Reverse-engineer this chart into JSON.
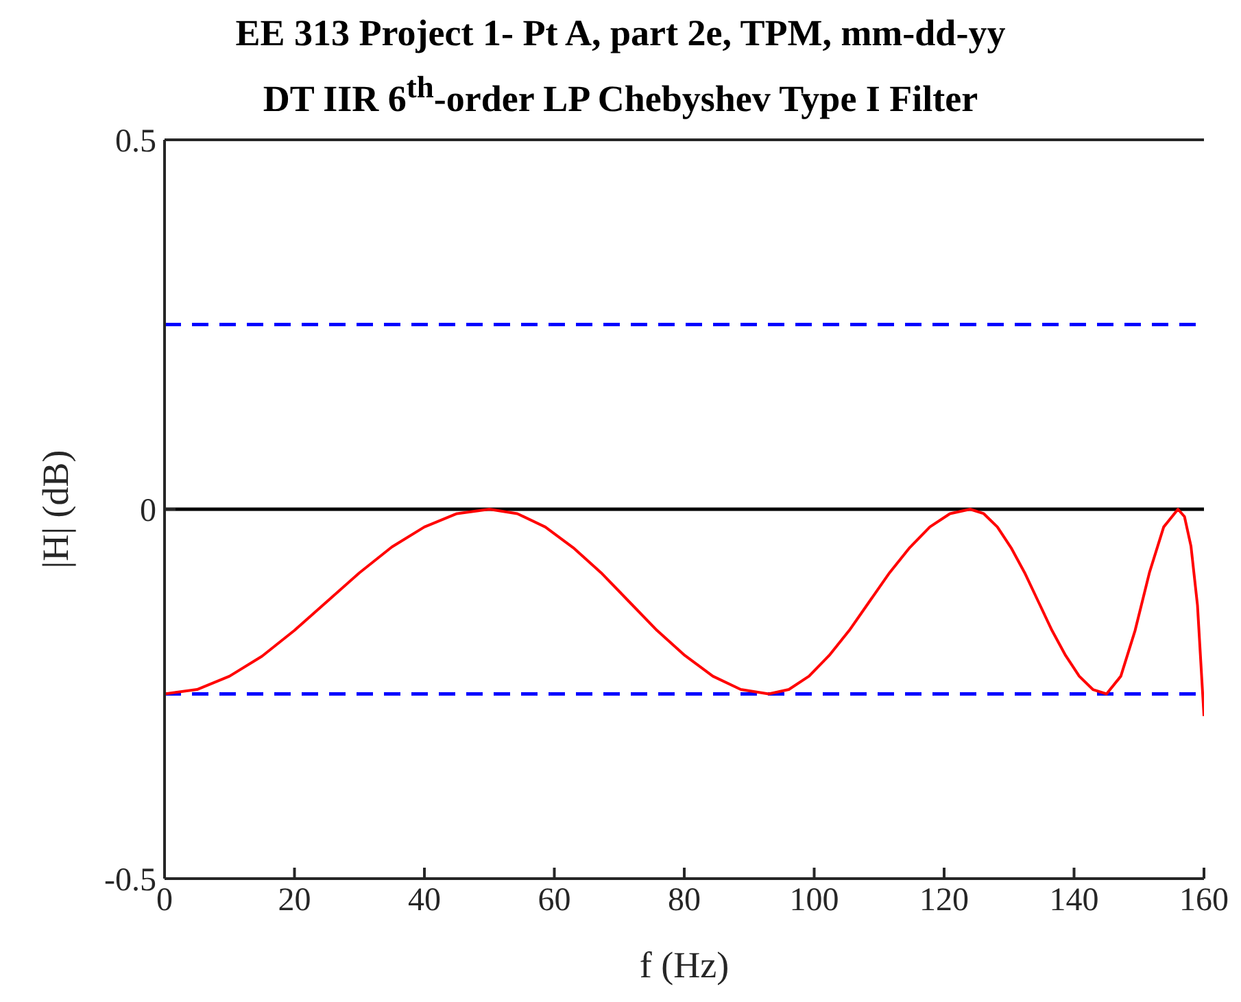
{
  "chart_data": {
    "type": "line",
    "title": "EE 313 Project 1- Pt A, part 2e, TPM, mm-dd-yy",
    "subtitle": "DT IIR 6$^{th}$-order LP Chebyshev Type I Filter",
    "xlabel": "f (Hz)",
    "ylabel": "|H| (dB)",
    "xlim": [
      0,
      160
    ],
    "xticks": [
      0,
      20,
      40,
      60,
      80,
      100,
      120,
      140,
      160
    ],
    "ylim": [
      -0.5,
      0.5
    ],
    "yticks": [
      -0.5,
      0,
      0.5
    ],
    "marker": "none",
    "x": [
      0,
      5,
      10,
      15,
      20,
      25,
      30,
      35,
      40,
      45,
      50,
      54.3,
      58.6,
      62.9,
      67.2,
      71.5,
      75.8,
      80.1,
      84.4,
      88.7,
      93,
      96.1,
      99.2,
      102.3,
      105.4,
      108.5,
      111.6,
      114.7,
      117.8,
      120.9,
      124,
      126.1,
      128.2,
      130.3,
      132.4,
      134.5,
      136.6,
      138.7,
      140.8,
      142.9,
      145,
      147.2,
      149.4,
      151.6,
      153.8,
      156,
      157,
      158,
      159,
      160
    ],
    "series": [
      {
        "color": "#ff0000",
        "values": [
          -0.25,
          -0.244,
          -0.226,
          -0.199,
          -0.164,
          -0.125,
          -0.086,
          -0.051,
          -0.024,
          -0.006,
          0,
          -0.006,
          -0.024,
          -0.052,
          -0.086,
          -0.125,
          -0.164,
          -0.198,
          -0.226,
          -0.244,
          -0.25,
          -0.244,
          -0.226,
          -0.198,
          -0.164,
          -0.125,
          -0.086,
          -0.052,
          -0.024,
          -0.006,
          0,
          -0.006,
          -0.024,
          -0.052,
          -0.086,
          -0.125,
          -0.164,
          -0.198,
          -0.226,
          -0.244,
          -0.25,
          -0.226,
          -0.164,
          -0.086,
          -0.024,
          0,
          -0.01,
          -0.05,
          -0.13,
          -0.28
        ]
      }
    ],
    "ref_lines": [
      {
        "axis": "y",
        "value": 0.25,
        "color": "#0000ff",
        "line_style": "dashed"
      },
      {
        "axis": "y",
        "value": 0,
        "color": "#000000",
        "line_style": "solid"
      },
      {
        "axis": "y",
        "value": -0.25,
        "color": "#0000ff",
        "line_style": "dashed"
      }
    ]
  }
}
